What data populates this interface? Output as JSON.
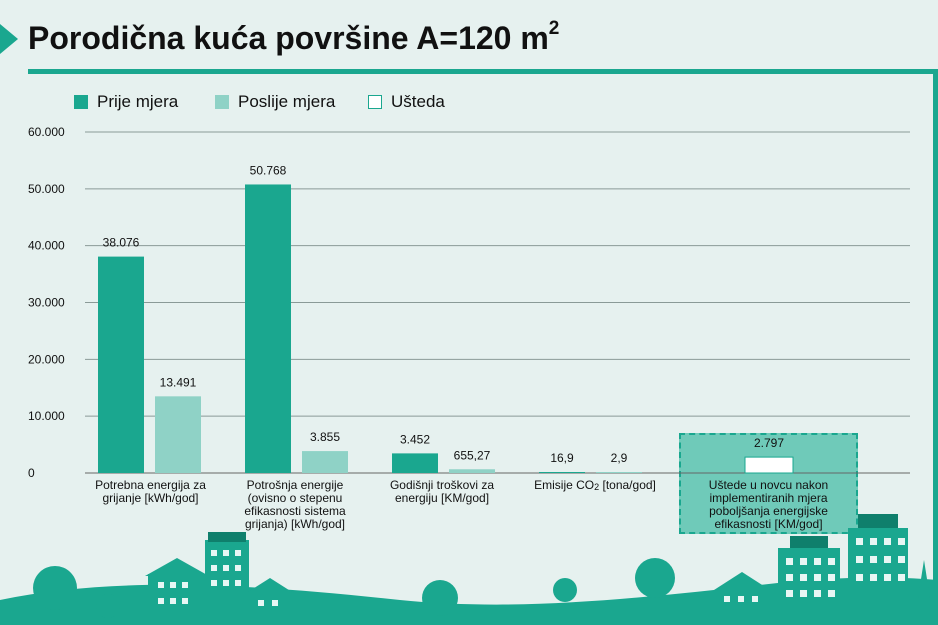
{
  "title": {
    "text": "Porodična kuća površine A=120 m",
    "sup": "2"
  },
  "legend": [
    {
      "label": "Prije mjera",
      "color": "#1aa78f"
    },
    {
      "label": "Poslije mjera",
      "color": "#8fd2c6"
    },
    {
      "label": "Ušteda",
      "color": "#ffffff"
    }
  ],
  "chart_data": {
    "type": "bar",
    "ylim": [
      0,
      60000
    ],
    "y_ticks": [
      0,
      10000,
      20000,
      30000,
      40000,
      50000,
      60000
    ],
    "y_tick_labels": [
      "0",
      "10.000",
      "20.000",
      "30.000",
      "40.000",
      "50.000",
      "60.000"
    ],
    "grid": true,
    "legend_position": "top-left",
    "categories": [
      "Potrebna energija za grijanje [kWh/god]",
      "Potrošnja energije (ovisno o stepenu efikasnosti sistema grijanja) [kWh/god]",
      "Godišnji troškovi za energiju [KM/god]",
      "Emisije CO2 [tona/god]",
      "Uštede u novcu nakon implementiranih mjera poboljšanja energijske efikasnosti [KM/god]"
    ],
    "series": [
      {
        "name": "Prije mjera",
        "color": "#1aa78f",
        "values": [
          38076,
          50768,
          3452,
          16.9,
          null
        ],
        "labels": [
          "38.076",
          "50.768",
          "3.452",
          "16,9",
          null
        ]
      },
      {
        "name": "Poslije mjera",
        "color": "#8fd2c6",
        "values": [
          13491,
          3855,
          655.27,
          2.9,
          null
        ],
        "labels": [
          "13.491",
          "3.855",
          "655,27",
          "2,9",
          null
        ]
      },
      {
        "name": "Ušteda",
        "color": "#ffffff",
        "values": [
          null,
          null,
          null,
          null,
          2797
        ],
        "labels": [
          null,
          null,
          null,
          null,
          "2.797"
        ]
      }
    ]
  }
}
